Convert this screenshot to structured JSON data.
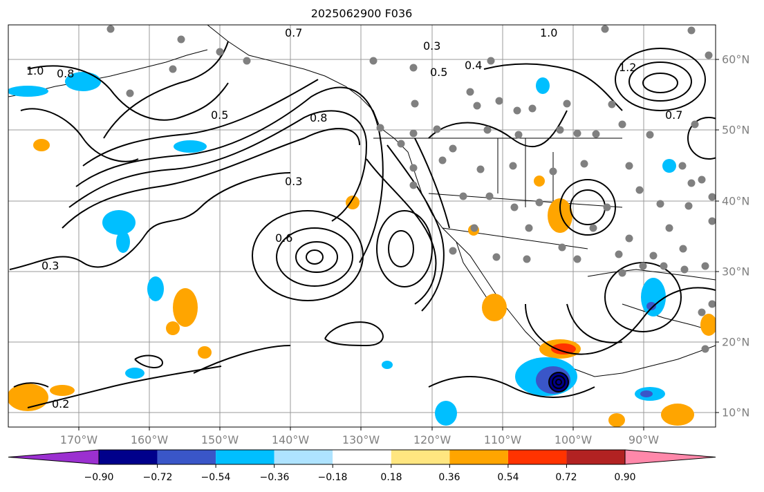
{
  "title": "2025062900 F036",
  "longitude_labels": [
    "170°W",
    "160°W",
    "150°W",
    "140°W",
    "130°W",
    "120°W",
    "110°W",
    "100°W",
    "90°W"
  ],
  "latitude_labels": [
    "60°N",
    "50°N",
    "40°N",
    "30°N",
    "20°N",
    "10°N"
  ],
  "contour_labels": [
    "1.0",
    "0.8",
    "0.5",
    "0.3",
    "0.2",
    "0.6",
    "0.7",
    "0.4",
    "0.3",
    "0.5",
    "0.8",
    "1.0",
    "1.2",
    "0.7",
    "0.3"
  ],
  "colorbar": {
    "ticks": [
      "−0.90",
      "−0.72",
      "−0.54",
      "−0.36",
      "−0.18",
      "0.18",
      "0.36",
      "0.54",
      "0.72",
      "0.90"
    ],
    "colors": [
      "#9b30d0",
      "#00008b",
      "#3a56c8",
      "#00bfff",
      "#aee3ff",
      "#ffffff",
      "#ffe680",
      "#ffa500",
      "#ff3300",
      "#b22222",
      "#ff88aa"
    ]
  },
  "colors": {
    "land_border": "#000000",
    "grid": "#999999",
    "station_dot": "#808080",
    "contour": "#000000"
  }
}
